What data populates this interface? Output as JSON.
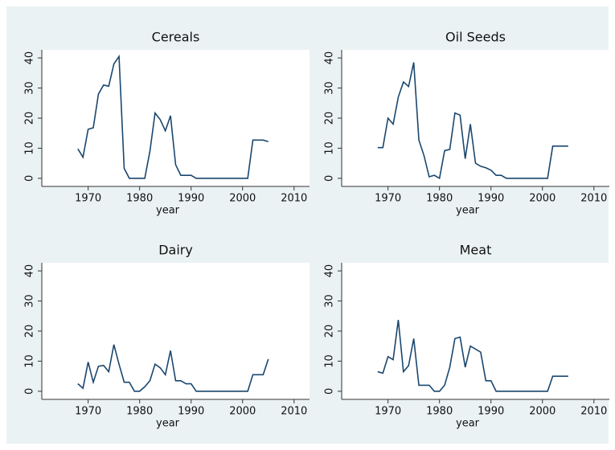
{
  "chart_data": [
    {
      "type": "line",
      "title": "Cereals",
      "x_label": "year",
      "color": "#1a476f",
      "x": [
        1968,
        1969,
        1970,
        1971,
        1972,
        1973,
        1974,
        1975,
        1976,
        1977,
        1978,
        1979,
        1980,
        1981,
        1982,
        1983,
        1984,
        1985,
        1986,
        1987,
        1988,
        1989,
        1990,
        1991,
        1992,
        1993,
        1994,
        1995,
        1996,
        1997,
        1998,
        1999,
        2000,
        2001,
        2002,
        2003,
        2004,
        2005
      ],
      "values": [
        9.8,
        7,
        16.3,
        16.8,
        28,
        31,
        30.6,
        38,
        40.5,
        3.3,
        0,
        0,
        0,
        0,
        9,
        21.7,
        19.5,
        15.8,
        20.8,
        4.5,
        1,
        1,
        1,
        0,
        0,
        0,
        0,
        0,
        0,
        0,
        0,
        0,
        0,
        0,
        12.7,
        12.7,
        12.7,
        12.2
      ],
      "xlim": [
        1961,
        2013
      ],
      "xticks": [
        1970,
        1980,
        1990,
        2000,
        2010
      ],
      "ylim": [
        -2.7,
        42.7
      ],
      "yticks": [
        0,
        10,
        20,
        30,
        40
      ]
    },
    {
      "type": "line",
      "title": "Oil Seeds",
      "x_label": "year",
      "color": "#1a476f",
      "x": [
        1968,
        1969,
        1970,
        1971,
        1972,
        1973,
        1974,
        1975,
        1976,
        1977,
        1978,
        1979,
        1980,
        1981,
        1982,
        1983,
        1984,
        1985,
        1986,
        1987,
        1988,
        1989,
        1990,
        1991,
        1992,
        1993,
        1994,
        1995,
        1996,
        1997,
        1998,
        1999,
        2000,
        2001,
        2002,
        2003,
        2004,
        2005
      ],
      "values": [
        10.2,
        10.2,
        20,
        18,
        27,
        32,
        30.5,
        38.5,
        12.7,
        7.5,
        0.5,
        1,
        0,
        9.2,
        9.6,
        21.7,
        21,
        6.5,
        18,
        5,
        4,
        3.5,
        2.7,
        1,
        1,
        0,
        0,
        0,
        0,
        0,
        0,
        0,
        0,
        0,
        10.7,
        10.7,
        10.7,
        10.7
      ],
      "xlim": [
        1961,
        2013
      ],
      "xticks": [
        1970,
        1980,
        1990,
        2000,
        2010
      ],
      "ylim": [
        -2.7,
        42.7
      ],
      "yticks": [
        0,
        10,
        20,
        30,
        40
      ]
    },
    {
      "type": "line",
      "title": "Dairy",
      "x_label": "year",
      "color": "#1a476f",
      "x": [
        1968,
        1969,
        1970,
        1971,
        1972,
        1973,
        1974,
        1975,
        1976,
        1977,
        1978,
        1979,
        1980,
        1981,
        1982,
        1983,
        1984,
        1985,
        1986,
        1987,
        1988,
        1989,
        1990,
        1991,
        1992,
        1993,
        1994,
        1995,
        1996,
        1997,
        1998,
        1999,
        2000,
        2001,
        2002,
        2003,
        2004,
        2005
      ],
      "values": [
        2.5,
        1,
        9.7,
        3,
        8.3,
        8.6,
        6.5,
        15.5,
        9,
        3,
        3,
        0,
        0,
        1.5,
        3.5,
        9,
        7.8,
        5.5,
        13.5,
        3.5,
        3.5,
        2.5,
        2.5,
        0,
        0,
        0,
        0,
        0,
        0,
        0,
        0,
        0,
        0,
        0,
        5.5,
        5.5,
        5.5,
        10.7
      ],
      "xlim": [
        1961,
        2013
      ],
      "xticks": [
        1970,
        1980,
        1990,
        2000,
        2010
      ],
      "ylim": [
        -2.7,
        42.7
      ],
      "yticks": [
        0,
        10,
        20,
        30,
        40
      ]
    },
    {
      "type": "line",
      "title": "Meat",
      "x_label": "year",
      "color": "#1a476f",
      "x": [
        1968,
        1969,
        1970,
        1971,
        1972,
        1973,
        1974,
        1975,
        1976,
        1977,
        1978,
        1979,
        1980,
        1981,
        1982,
        1983,
        1984,
        1985,
        1986,
        1987,
        1988,
        1989,
        1990,
        1991,
        1992,
        1993,
        1994,
        1995,
        1996,
        1997,
        1998,
        1999,
        2000,
        2001,
        2002,
        2003,
        2004,
        2005
      ],
      "values": [
        6.5,
        6,
        11.5,
        10.5,
        23.7,
        6.5,
        8.5,
        17.5,
        2,
        2,
        2,
        0,
        0,
        2,
        8,
        17.5,
        18,
        8,
        15,
        14,
        13,
        3.5,
        3.5,
        0,
        0,
        0,
        0,
        0,
        0,
        0,
        0,
        0,
        0,
        0,
        5,
        5,
        5,
        5
      ],
      "xlim": [
        1961,
        2013
      ],
      "xticks": [
        1970,
        1980,
        1990,
        2000,
        2010
      ],
      "ylim": [
        -2.7,
        42.7
      ],
      "yticks": [
        0,
        10,
        20,
        30,
        40
      ]
    }
  ]
}
